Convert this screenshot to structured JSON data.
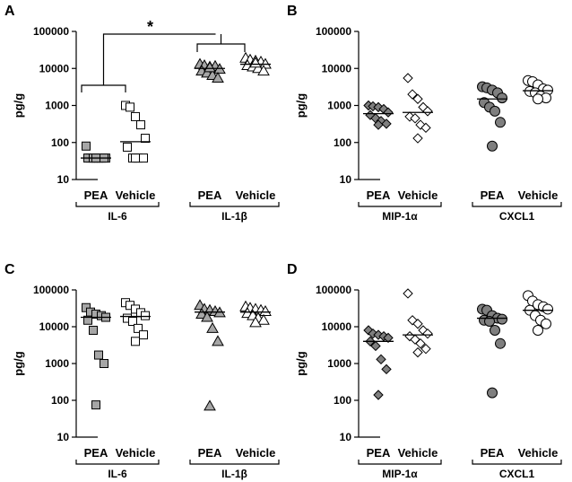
{
  "colors": {
    "filled": "#a6a6a6",
    "dark_filled": "#7f7f7f",
    "open": "#ffffff",
    "stroke": "#000000"
  },
  "chart_data": [
    {
      "type": "scatter",
      "panel": "A",
      "ylabel": "pg/g",
      "yscale": "log",
      "ylim": [
        10,
        100000
      ],
      "yticks": [
        "10",
        "100",
        "1000",
        "10000",
        "100000"
      ],
      "groups": [
        {
          "cytokine": "IL-6",
          "categories": [
            "PEA",
            "Vehicle"
          ]
        },
        {
          "cytokine": "IL-1β",
          "categories": [
            "PEA",
            "Vehicle"
          ]
        }
      ],
      "series": [
        {
          "cytokine": "IL-6",
          "treatment": "PEA",
          "marker": "square",
          "fill": "filled",
          "values": [
            80,
            38,
            38,
            38,
            38,
            38,
            38,
            38,
            38,
            38
          ],
          "median": 38
        },
        {
          "cytokine": "IL-6",
          "treatment": "Vehicle",
          "marker": "square",
          "fill": "open",
          "values": [
            1000,
            900,
            500,
            300,
            130,
            75,
            38,
            38,
            38,
            38
          ],
          "median": 105
        },
        {
          "cytokine": "IL-1β",
          "treatment": "PEA",
          "marker": "triangle",
          "fill": "filled",
          "values": [
            13000,
            12000,
            11000,
            11500,
            9500,
            8500,
            7500,
            6500,
            5500,
            10500
          ],
          "median": 10000
        },
        {
          "cytokine": "IL-1β",
          "treatment": "Vehicle",
          "marker": "triangle",
          "fill": "open",
          "values": [
            19000,
            17000,
            16000,
            15000,
            13000,
            12000,
            11000,
            10000,
            8500,
            14000
          ],
          "median": 13000
        }
      ],
      "annotations": [
        {
          "text": "*",
          "between": "IL-6 vs IL-1β"
        }
      ]
    },
    {
      "type": "scatter",
      "panel": "B",
      "ylabel": "pg/g",
      "yscale": "log",
      "ylim": [
        10,
        100000
      ],
      "yticks": [
        "10",
        "100",
        "1000",
        "10000",
        "100000"
      ],
      "groups": [
        {
          "cytokine": "MIP-1α",
          "categories": [
            "PEA",
            "Vehicle"
          ]
        },
        {
          "cytokine": "CXCL1",
          "categories": [
            "PEA",
            "Vehicle"
          ]
        }
      ],
      "series": [
        {
          "cytokine": "MIP-1α",
          "treatment": "PEA",
          "marker": "diamond",
          "fill": "dark_filled",
          "values": [
            1000,
            950,
            900,
            800,
            650,
            550,
            450,
            380,
            320,
            300
          ],
          "median": 600
        },
        {
          "cytokine": "MIP-1α",
          "treatment": "Vehicle",
          "marker": "diamond",
          "fill": "open",
          "values": [
            5500,
            2000,
            1500,
            900,
            700,
            500,
            450,
            300,
            250,
            130
          ],
          "median": 650
        },
        {
          "cytokine": "CXCL1",
          "treatment": "PEA",
          "marker": "circle",
          "fill": "dark_filled",
          "values": [
            3200,
            3000,
            2600,
            2200,
            1600,
            1200,
            900,
            700,
            350,
            80
          ],
          "median": 1500
        },
        {
          "cytokine": "CXCL1",
          "treatment": "Vehicle",
          "marker": "circle",
          "fill": "open",
          "values": [
            4700,
            4400,
            3600,
            2800,
            2600,
            2400,
            2200,
            1800,
            1600,
            1500
          ],
          "median": 2500
        }
      ]
    },
    {
      "type": "scatter",
      "panel": "C",
      "ylabel": "pg/g",
      "yscale": "log",
      "ylim": [
        10,
        100000
      ],
      "yticks": [
        "10",
        "100",
        "1000",
        "10000",
        "100000"
      ],
      "groups": [
        {
          "cytokine": "IL-6",
          "categories": [
            "PEA",
            "Vehicle"
          ]
        },
        {
          "cytokine": "IL-1β",
          "categories": [
            "PEA",
            "Vehicle"
          ]
        }
      ],
      "series": [
        {
          "cytokine": "IL-6",
          "treatment": "PEA",
          "marker": "square",
          "fill": "filled",
          "values": [
            33000,
            25000,
            22000,
            20000,
            18000,
            15000,
            8000,
            1700,
            1000,
            75
          ],
          "median": 18000
        },
        {
          "cytokine": "IL-6",
          "treatment": "Vehicle",
          "marker": "square",
          "fill": "open",
          "values": [
            45000,
            38000,
            30000,
            24000,
            20000,
            17000,
            14000,
            9000,
            6000,
            4000
          ],
          "median": 19000
        },
        {
          "cytokine": "IL-1β",
          "treatment": "PEA",
          "marker": "triangle",
          "fill": "filled",
          "values": [
            38000,
            30000,
            28000,
            26000,
            24000,
            22000,
            18000,
            9000,
            4000,
            70
          ],
          "median": 25000
        },
        {
          "cytokine": "IL-1β",
          "treatment": "Vehicle",
          "marker": "triangle",
          "fill": "open",
          "values": [
            35000,
            32000,
            30000,
            28000,
            26000,
            23000,
            20000,
            17000,
            15000,
            13000
          ],
          "median": 25000
        }
      ]
    },
    {
      "type": "scatter",
      "panel": "D",
      "ylabel": "pg/g",
      "yscale": "log",
      "ylim": [
        10,
        100000
      ],
      "yticks": [
        "10",
        "100",
        "1000",
        "10000",
        "100000"
      ],
      "groups": [
        {
          "cytokine": "MIP-1α",
          "categories": [
            "PEA",
            "Vehicle"
          ]
        },
        {
          "cytokine": "CXCL1",
          "categories": [
            "PEA",
            "Vehicle"
          ]
        }
      ],
      "series": [
        {
          "cytokine": "MIP-1α",
          "treatment": "PEA",
          "marker": "diamond",
          "fill": "dark_filled",
          "values": [
            8000,
            6500,
            6000,
            5500,
            5000,
            4000,
            3000,
            1300,
            700,
            140
          ],
          "median": 4000
        },
        {
          "cytokine": "MIP-1α",
          "treatment": "Vehicle",
          "marker": "diamond",
          "fill": "open",
          "values": [
            80000,
            15000,
            12000,
            8000,
            6500,
            5500,
            4500,
            3500,
            2500,
            2000
          ],
          "median": 6000
        },
        {
          "cytokine": "CXCL1",
          "treatment": "PEA",
          "marker": "circle",
          "fill": "dark_filled",
          "values": [
            30000,
            28000,
            20000,
            17000,
            16000,
            15000,
            14000,
            8000,
            3500,
            160
          ],
          "median": 17000
        },
        {
          "cytokine": "CXCL1",
          "treatment": "Vehicle",
          "marker": "circle",
          "fill": "open",
          "values": [
            70000,
            50000,
            40000,
            35000,
            30000,
            28000,
            20000,
            15000,
            12000,
            8000
          ],
          "median": 28000
        }
      ]
    }
  ]
}
